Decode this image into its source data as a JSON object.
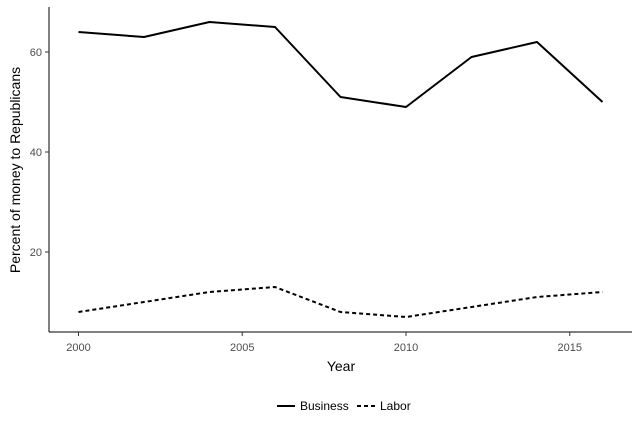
{
  "chart_data": {
    "type": "line",
    "title": "",
    "xlabel": "Year",
    "ylabel": "Percent of money to Republicans",
    "x": [
      2000,
      2002,
      2004,
      2006,
      2008,
      2010,
      2012,
      2014,
      2016
    ],
    "xlim": [
      1999.1,
      2016.9
    ],
    "ylim": [
      4.0,
      69.0
    ],
    "xticks": [
      2000,
      2005,
      2010,
      2015
    ],
    "yticks": [
      20,
      40,
      60
    ],
    "xtick_labels": [
      "2000",
      "2005",
      "2010",
      "2015"
    ],
    "ytick_labels": [
      "20",
      "40",
      "60"
    ],
    "grid": false,
    "legend_position": "bottom",
    "series": [
      {
        "name": "Business",
        "style": "solid",
        "color": "#000000",
        "values": [
          64,
          63,
          66,
          65,
          51,
          49,
          59,
          62,
          50
        ]
      },
      {
        "name": "Labor",
        "style": "dashed",
        "color": "#000000",
        "values": [
          8,
          10,
          12,
          13,
          8,
          7,
          9,
          11,
          12
        ]
      }
    ]
  }
}
